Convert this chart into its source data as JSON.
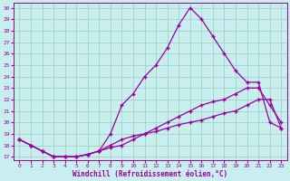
{
  "xlabel": "Windchill (Refroidissement éolien,°C)",
  "bg_color": "#c8eef0",
  "line_color": "#990099",
  "grid_color": "#99ccbb",
  "xmin": -0.5,
  "xmax": 23.5,
  "ymin": 16.7,
  "ymax": 30.4,
  "xticks": [
    0,
    1,
    2,
    3,
    4,
    5,
    6,
    7,
    8,
    9,
    10,
    11,
    12,
    13,
    14,
    15,
    16,
    17,
    18,
    19,
    20,
    21,
    22,
    23
  ],
  "yticks": [
    17,
    18,
    19,
    20,
    21,
    22,
    23,
    24,
    25,
    26,
    27,
    28,
    29,
    30
  ],
  "series1_x": [
    0,
    1,
    2,
    3,
    4,
    5,
    6,
    7,
    8,
    9,
    10,
    11,
    12,
    13,
    14,
    15,
    16,
    17,
    18,
    19,
    20,
    21,
    22,
    23
  ],
  "series1_y": [
    18.5,
    18.0,
    17.5,
    17.0,
    17.0,
    17.0,
    17.2,
    17.5,
    17.8,
    18.0,
    18.5,
    19.0,
    19.2,
    19.5,
    19.8,
    20.0,
    20.2,
    20.5,
    20.8,
    21.0,
    21.5,
    22.0,
    22.0,
    19.5
  ],
  "series2_x": [
    0,
    1,
    2,
    3,
    4,
    5,
    6,
    7,
    8,
    9,
    10,
    11,
    12,
    13,
    14,
    15,
    16,
    17,
    18,
    19,
    20,
    21,
    22,
    23
  ],
  "series2_y": [
    18.5,
    18.0,
    17.5,
    17.0,
    17.0,
    17.0,
    17.2,
    17.5,
    18.0,
    18.5,
    18.8,
    19.0,
    19.5,
    20.0,
    20.5,
    21.0,
    21.5,
    21.8,
    22.0,
    22.5,
    23.0,
    23.0,
    21.5,
    20.0
  ],
  "series3_x": [
    0,
    1,
    2,
    3,
    4,
    5,
    6,
    7,
    8,
    9,
    10,
    11,
    12,
    13,
    14,
    15,
    16,
    17,
    18,
    19,
    20,
    21,
    22,
    23
  ],
  "series3_y": [
    18.5,
    18.0,
    17.5,
    17.0,
    17.0,
    17.0,
    17.2,
    17.5,
    19.0,
    21.5,
    22.5,
    24.0,
    25.0,
    26.5,
    28.5,
    30.0,
    29.0,
    27.5,
    26.0,
    24.5,
    23.5,
    23.5,
    20.0,
    19.5
  ]
}
